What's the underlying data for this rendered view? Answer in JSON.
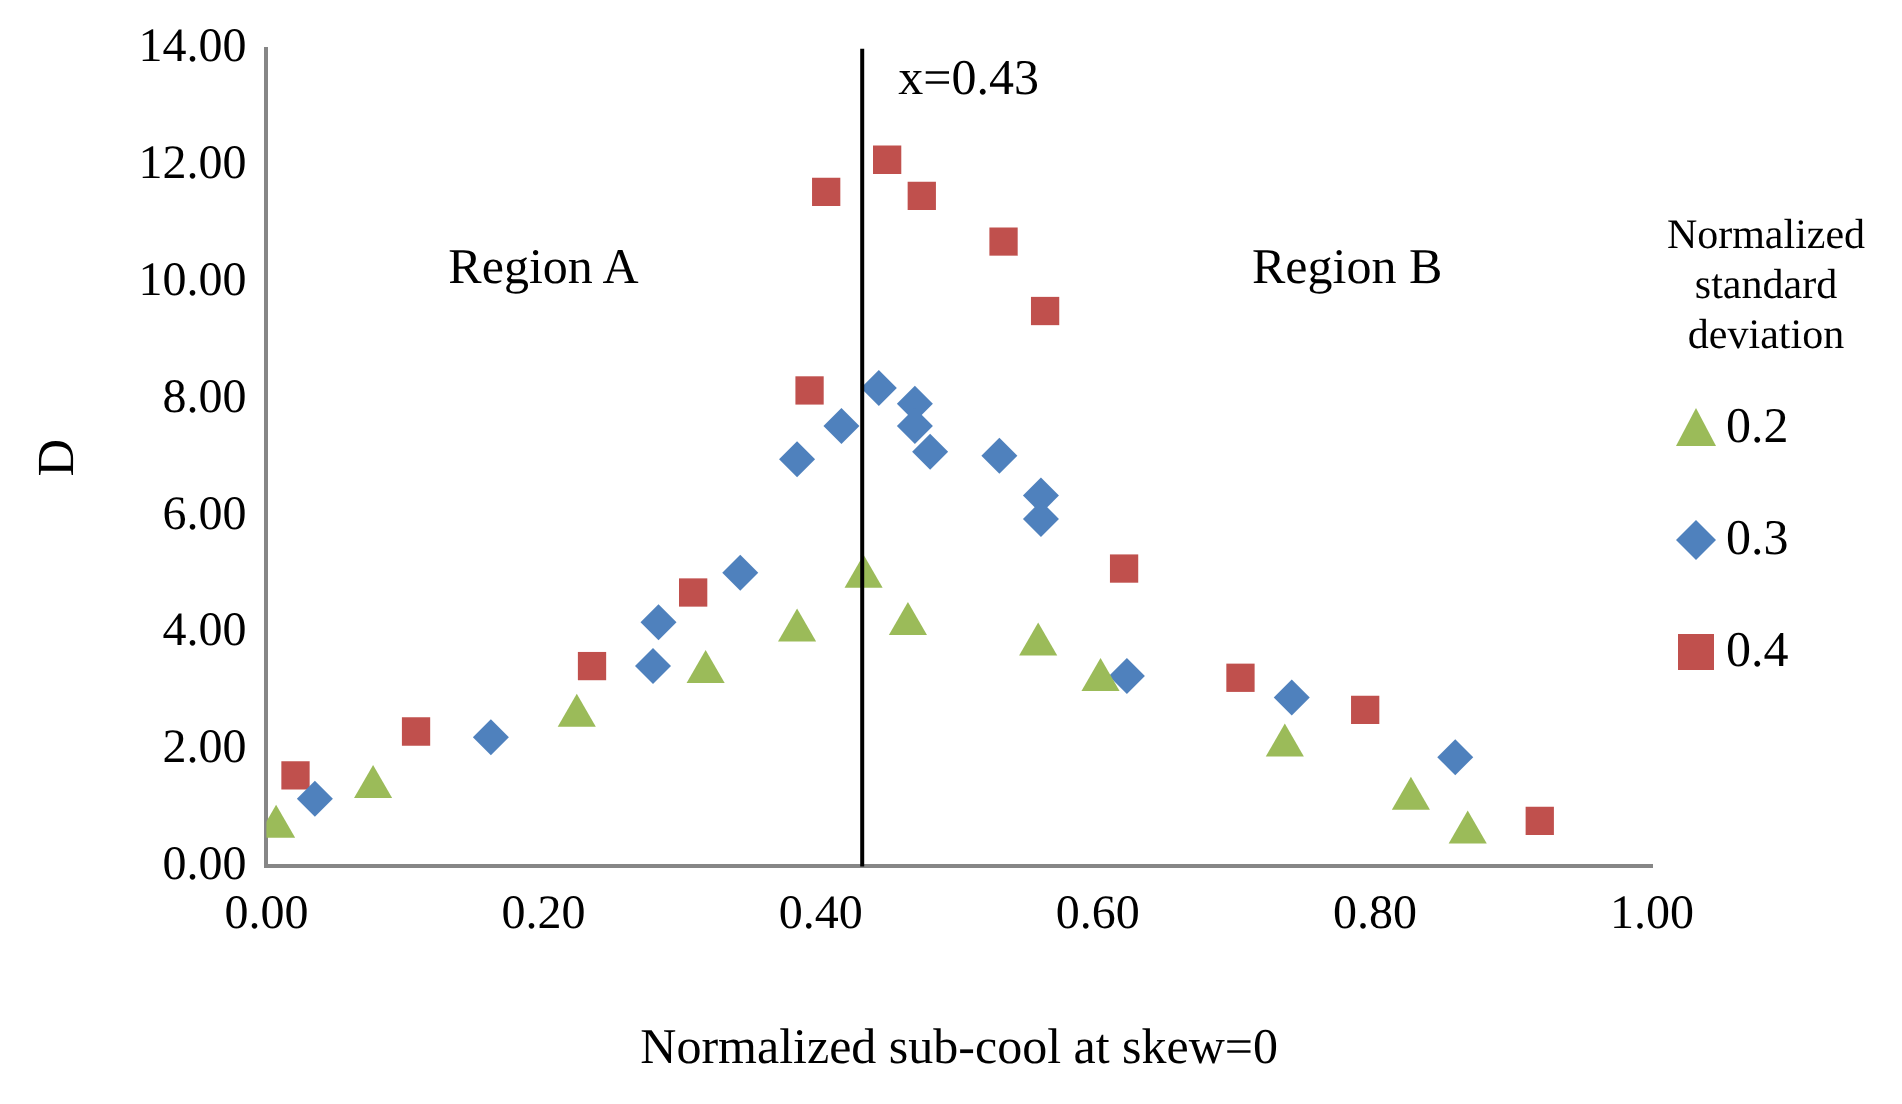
{
  "chart_data": {
    "type": "scatter",
    "xlabel": "Normalized sub-cool at skew=0",
    "ylabel": "D",
    "legend_title": "Normalized standard deviation",
    "legend": "right",
    "grid": false,
    "xlim": [
      0,
      1
    ],
    "xticks": [
      {
        "value": 0,
        "label": "0.00"
      },
      {
        "value": 0.2,
        "label": "0.20"
      },
      {
        "value": 0.4,
        "label": "0.40"
      },
      {
        "value": 0.6,
        "label": "0.60"
      },
      {
        "value": 0.8,
        "label": "0.80"
      },
      {
        "value": 1,
        "label": "1.00"
      }
    ],
    "ylim": [
      0,
      14
    ],
    "yticks": [
      {
        "value": 0,
        "label": "0.00"
      },
      {
        "value": 2,
        "label": "2.00"
      },
      {
        "value": 4,
        "label": "4.00"
      },
      {
        "value": 6,
        "label": "6.00"
      },
      {
        "value": 8,
        "label": "8.00"
      },
      {
        "value": 10,
        "label": "10.00"
      },
      {
        "value": 12,
        "label": "12.00"
      },
      {
        "value": 14,
        "label": "14.00"
      }
    ],
    "ref_lines": [
      {
        "axis": "x",
        "value": 0.43,
        "label": "x=0.43",
        "color": "#000000"
      }
    ],
    "annotations": [
      "Region A",
      "Region B"
    ],
    "series": [
      {
        "name": "0.2",
        "color": "#9bbb59",
        "marker": "triangle",
        "x": [
          0.007,
          0.077,
          0.224,
          0.317,
          0.383,
          0.431,
          0.463,
          0.557,
          0.602,
          0.735,
          0.826,
          0.867
        ],
        "values": [
          0.68,
          1.36,
          2.58,
          3.33,
          4.04,
          4.96,
          4.15,
          3.8,
          3.19,
          2.07,
          1.16,
          0.58
        ]
      },
      {
        "name": "0.3",
        "color": "#4f81bd",
        "marker": "diamond",
        "x": [
          0.035,
          0.162,
          0.279,
          0.283,
          0.342,
          0.383,
          0.415,
          0.442,
          0.468,
          0.468,
          0.479,
          0.529,
          0.559,
          0.559,
          0.621,
          0.74,
          0.858
        ],
        "values": [
          1.16,
          2.21,
          3.43,
          4.18,
          5.03,
          6.97,
          7.54,
          8.19,
          7.92,
          7.54,
          7.1,
          7.03,
          6.35,
          5.95,
          3.26,
          2.89,
          1.87
        ]
      },
      {
        "name": "0.4",
        "color": "#c0504d",
        "marker": "square",
        "x": [
          0.021,
          0.108,
          0.235,
          0.308,
          0.392,
          0.404,
          0.448,
          0.473,
          0.532,
          0.562,
          0.619,
          0.703,
          0.793,
          0.919
        ],
        "values": [
          1.56,
          2.31,
          3.43,
          4.69,
          8.15,
          11.55,
          12.1,
          11.48,
          10.7,
          9.51,
          5.1,
          3.23,
          2.68,
          0.78
        ]
      }
    ]
  }
}
